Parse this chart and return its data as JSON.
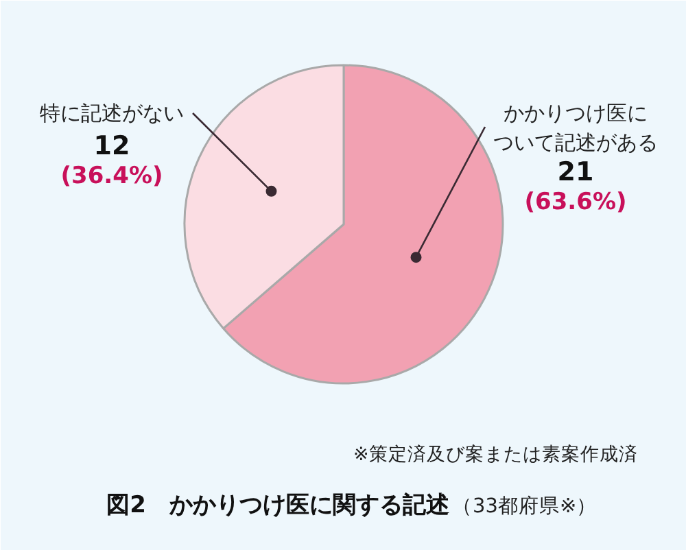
{
  "chart_data": {
    "type": "pie",
    "title": "図2　かかりつけ医に関する記述",
    "subtitle": "（33都府県※）",
    "categories": [
      "かかりつけ医について記述がある",
      "特に記述がない"
    ],
    "values": [
      21,
      12
    ],
    "colors": [
      "#f2a1b2",
      "#fbdde3"
    ],
    "value_labels": [
      "21\n(63.6%)",
      "12\n(36.4%)"
    ],
    "annotations": [
      "※策定済及び案または素案作成済"
    ]
  }
}
